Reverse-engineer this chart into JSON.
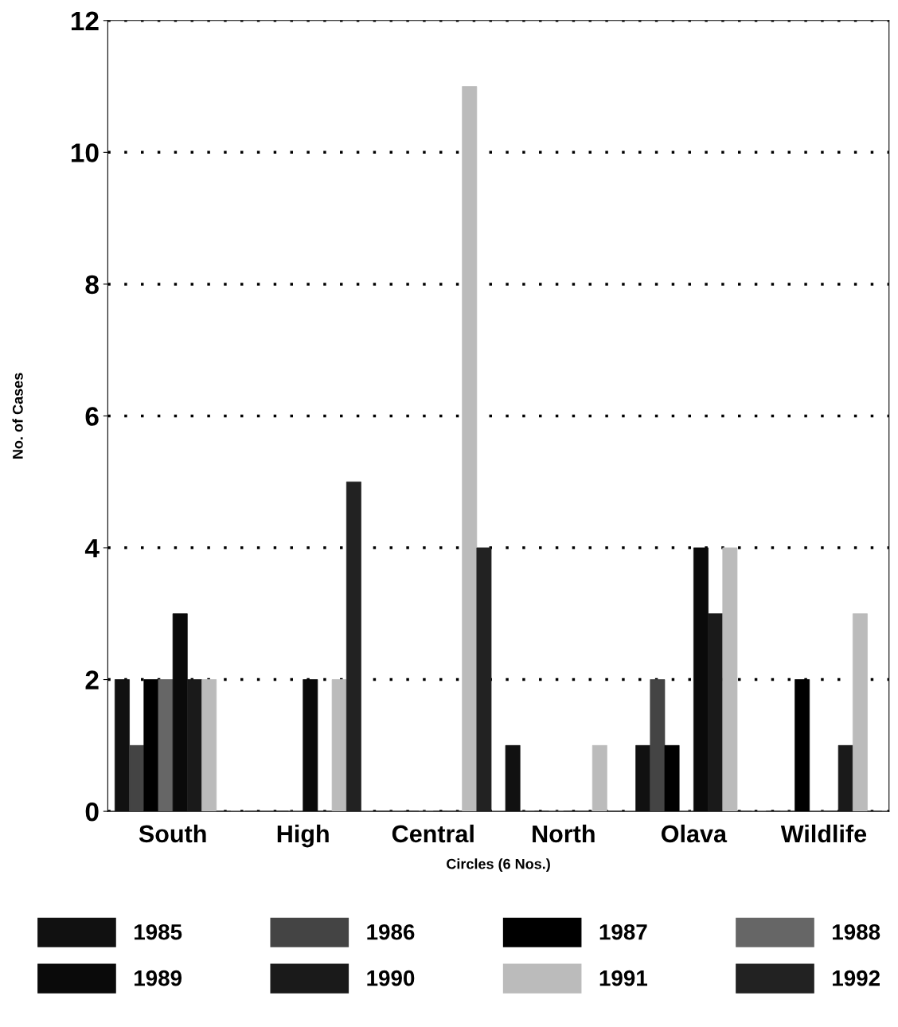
{
  "chart_data": {
    "type": "bar",
    "xlabel": "Circles (6 Nos.)",
    "ylabel": "No. of Cases",
    "categories": [
      "South",
      "High",
      "Central",
      "North",
      "Olava",
      "Wildlife"
    ],
    "series": [
      {
        "name": "1985",
        "color": "#111111",
        "values": [
          2,
          0,
          0,
          1,
          1,
          0
        ]
      },
      {
        "name": "1986",
        "color": "#444444",
        "values": [
          1,
          0,
          0,
          0,
          2,
          0
        ]
      },
      {
        "name": "1987",
        "color": "#000000",
        "values": [
          2,
          0,
          0,
          0,
          1,
          2
        ]
      },
      {
        "name": "1988",
        "color": "#666666",
        "values": [
          2,
          0,
          0,
          0,
          0,
          0
        ]
      },
      {
        "name": "1989",
        "color": "#0a0a0a",
        "values": [
          3,
          2,
          0,
          0,
          4,
          0
        ]
      },
      {
        "name": "1990",
        "color": "#1a1a1a",
        "values": [
          2,
          0,
          0,
          0,
          3,
          1
        ]
      },
      {
        "name": "1991",
        "color": "#bbbbbb",
        "values": [
          2,
          2,
          11,
          1,
          4,
          3
        ]
      },
      {
        "name": "1992",
        "color": "#222222",
        "values": [
          0,
          5,
          4,
          0,
          0,
          0
        ]
      }
    ],
    "ylim": [
      0,
      12
    ],
    "yticks": [
      0,
      2,
      4,
      6,
      8,
      10,
      12
    ],
    "grid": "y",
    "legend": "bottom"
  }
}
